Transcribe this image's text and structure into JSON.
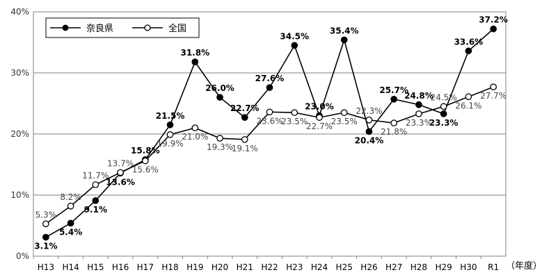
{
  "chart_data": {
    "type": "line",
    "categories": [
      "H13",
      "H14",
      "H15",
      "H16",
      "H17",
      "H18",
      "H19",
      "H20",
      "H21",
      "H22",
      "H23",
      "H24",
      "H25",
      "H26",
      "H27",
      "H28",
      "H29",
      "H30",
      "R1"
    ],
    "x_unit": "（年度）",
    "ylim": [
      0,
      40
    ],
    "y_ticks": [
      "0%",
      "10%",
      "20%",
      "30%",
      "40%"
    ],
    "grid": true,
    "legend_position": "top-left",
    "series": [
      {
        "name": "奈良県",
        "marker": "filled-circle",
        "color": "#000000",
        "values": [
          3.1,
          5.4,
          9.1,
          13.6,
          15.8,
          21.5,
          31.8,
          26.0,
          22.7,
          27.6,
          34.5,
          23.0,
          35.4,
          20.4,
          25.7,
          24.8,
          23.3,
          33.6,
          37.2
        ],
        "data_labels": [
          "3.1%",
          "5.4%",
          "9.1%",
          "13.6%",
          "15.8%",
          "21.5%",
          "31.8%",
          "26.0%",
          "22.7%",
          "27.6%",
          "34.5%",
          "23.0%",
          "35.4%",
          "20.4%",
          "25.7%",
          "24.8%",
          "23.3%",
          "33.6%",
          "37.2%"
        ]
      },
      {
        "name": "全国",
        "marker": "open-circle",
        "color": "#000000",
        "values": [
          5.3,
          8.2,
          11.7,
          13.7,
          15.6,
          19.9,
          21.0,
          19.3,
          19.1,
          23.6,
          23.5,
          22.7,
          23.5,
          22.3,
          21.8,
          23.3,
          24.5,
          26.1,
          27.7
        ],
        "data_labels": [
          "5.3%",
          "8.2%",
          "11.7%",
          "13.7%",
          "15.6%",
          "19.9%",
          "21.0%",
          "19.3%",
          "19.1%",
          "23.6%",
          "23.5%",
          "22.7%",
          "23.5%",
          "22.3%",
          "21.8%",
          "23.3%",
          "24.5%",
          "26.1%",
          "27.7%"
        ]
      }
    ]
  }
}
